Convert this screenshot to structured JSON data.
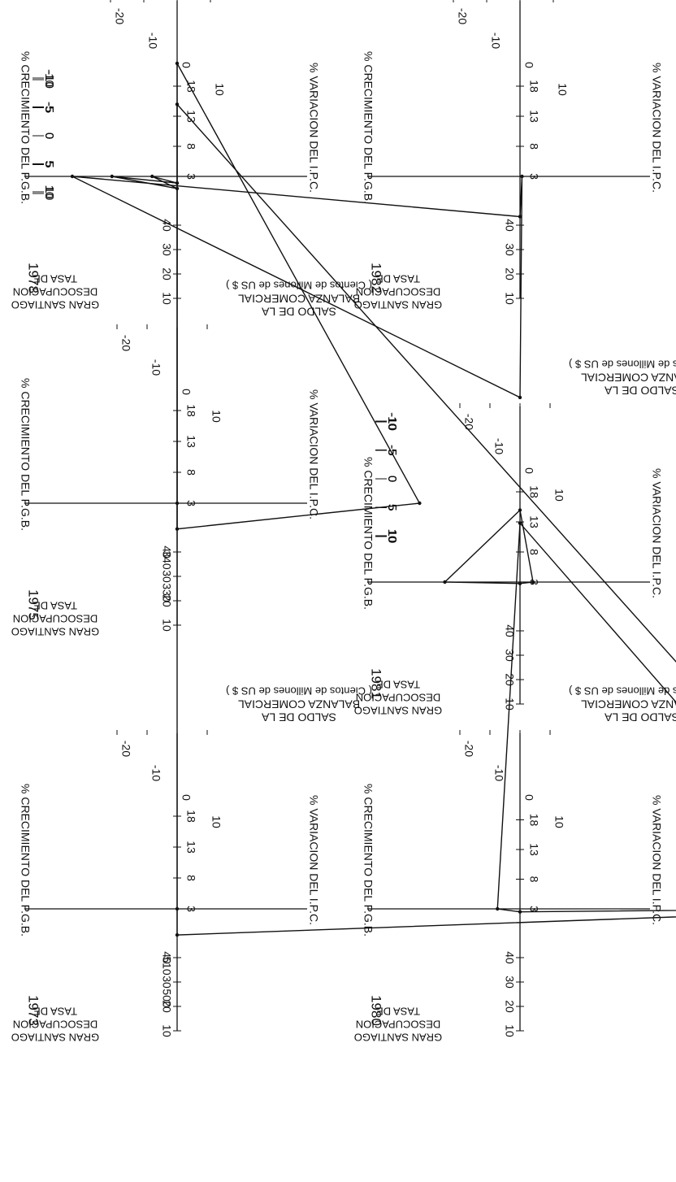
{
  "labels": {
    "pgb": "% CRECIMIENTO  DEL  P.G.B.",
    "ipc": "% VARIACION  DEL  I.P.C.",
    "bal1": "SALDO  DE  LA",
    "bal2": "BALANZA COMERCIAL",
    "bal3": "( Cientos  de  Millones  de  US $ )",
    "des1": "TASA DE",
    "des2": "DESOCUPACION",
    "des3": "GRAN  SANTIAGO"
  },
  "chart_data": [
    {
      "type": "radar",
      "year": "1973",
      "axes": {
        "pgb_ticks": [
          "10",
          "5",
          "0",
          "-5",
          "-10"
        ],
        "ipc_ticks": [
          "40",
          "30",
          "20",
          "10"
        ],
        "balanza_ticks": [
          "-20",
          "-10",
          "0",
          "10"
        ],
        "desocupacion_ticks": [
          "18",
          "13",
          "8",
          "3"
        ]
      },
      "values": {
        "pgb": -5.6,
        "ipc": 508,
        "balanza": 0,
        "desocupacion": 4.8
      },
      "point_labels": [
        "510",
        "500"
      ]
    },
    {
      "type": "radar",
      "year": "1975",
      "axes": {
        "pgb_ticks": [
          "10",
          "5",
          "0",
          "-5",
          "-10"
        ],
        "ipc_ticks": [
          "40",
          "30",
          "20",
          "10"
        ],
        "balanza_ticks": [
          "-20",
          "-10",
          "0",
          "10"
        ],
        "desocupacion_ticks": [
          "18",
          "13",
          "8",
          "3"
        ]
      },
      "values": {
        "pgb": -12.9,
        "ipc": 343,
        "balanza": 0,
        "desocupacion": 16.5
      },
      "point_labels": [
        "340",
        "330"
      ]
    },
    {
      "type": "radar",
      "year": "1978",
      "axes": {
        "pgb_ticks": [
          "10",
          "5",
          "0",
          "-5",
          "-10"
        ],
        "ipc_ticks": [
          "40",
          "30",
          "20",
          "10"
        ],
        "balanza_ticks": [
          "-20",
          "-10",
          "0",
          "10"
        ],
        "desocupacion_ticks": [
          "18",
          "13",
          "8",
          "3"
        ]
      },
      "values": {
        "pgb": 8.2,
        "ipc": 30.3,
        "balanza": -7.5,
        "desocupacion": 13.7
      }
    },
    {
      "type": "radar",
      "year": "1980",
      "axes": {
        "pgb_ticks": [
          "10",
          "5",
          "0",
          "-5",
          "-10"
        ],
        "ipc_ticks": [
          "40",
          "30",
          "20",
          "10"
        ],
        "balanza_ticks": [
          "-20",
          "-10",
          "0",
          "10"
        ],
        "desocupacion_ticks": [
          "18",
          "13",
          "8",
          "3"
        ]
      },
      "values": {
        "pgb": 7.8,
        "ipc": 31.2,
        "balanza": -7.5,
        "desocupacion": 11.8
      }
    },
    {
      "type": "radar",
      "year": "1981",
      "axes": {
        "pgb_ticks": [
          "10",
          "5",
          "0",
          "-5",
          "-10"
        ],
        "ipc_ticks": [
          "40",
          "30",
          "20",
          "10"
        ],
        "balanza_ticks": [
          "-20",
          "-10",
          "0",
          "10"
        ],
        "desocupacion_ticks": [
          "18",
          "13",
          "8",
          "3"
        ]
      },
      "values": {
        "pgb": 5.5,
        "ipc": 9.5,
        "balanza": -25,
        "desocupacion": 11.1
      }
    },
    {
      "type": "radar",
      "year": "1982",
      "axes": {
        "pgb_ticks": [
          "10",
          "5",
          "0",
          "-5",
          "-10"
        ],
        "ipc_ticks": [
          "40",
          "30",
          "20",
          "10"
        ],
        "balanza_ticks": [
          "-20",
          "-10",
          "0",
          "10"
        ],
        "desocupacion_ticks": [
          "18",
          "13",
          "8",
          "3"
        ]
      },
      "values": {
        "pgb": -14.1,
        "ipc": 20.7,
        "balanza": 0.6,
        "desocupacion": 20.3
      }
    }
  ]
}
